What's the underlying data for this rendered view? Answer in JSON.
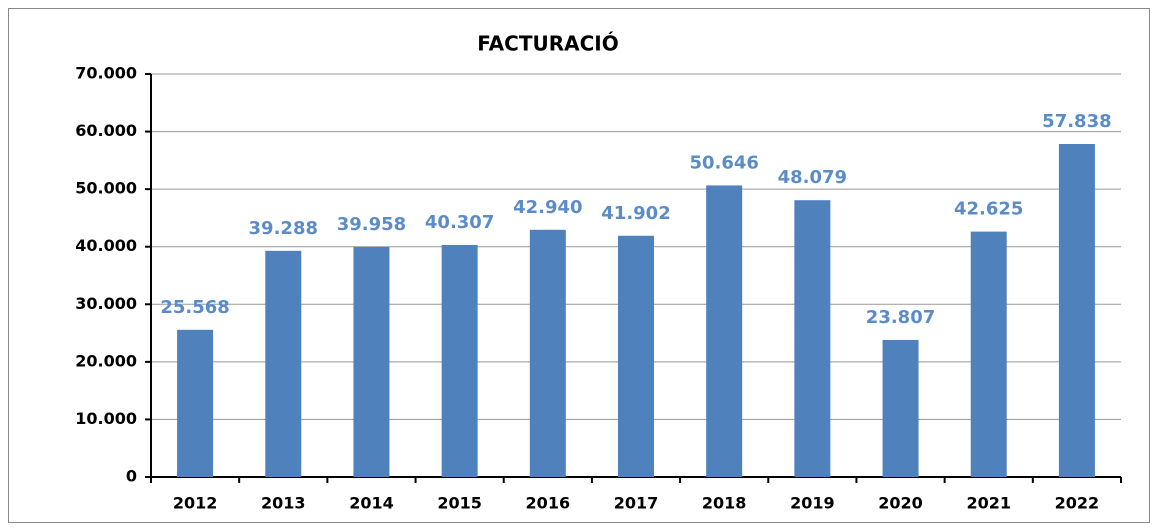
{
  "chart_data": {
    "type": "bar",
    "title": "FACTURACIÓ",
    "categories": [
      "2012",
      "2013",
      "2014",
      "2015",
      "2016",
      "2017",
      "2018",
      "2019",
      "2020",
      "2021",
      "2022"
    ],
    "values": [
      25568,
      39288,
      39958,
      40307,
      42940,
      41902,
      50646,
      48079,
      23807,
      42625,
      57838
    ],
    "value_labels": [
      "25.568",
      "39.288",
      "39.958",
      "40.307",
      "42.940",
      "41.902",
      "50.646",
      "48.079",
      "23.807",
      "42.625",
      "57.838"
    ],
    "color": "#4f81bd",
    "ylim": [
      0,
      70000
    ],
    "yticks": [
      0,
      {
        "value": 10000,
        "label": "10.000"
      },
      {
        "value": 20000,
        "label": "20.000"
      },
      {
        "value": 30000,
        "label": "30.000"
      },
      {
        "value": 40000,
        "label": "40.000"
      },
      {
        "value": 50000,
        "label": "50.000"
      },
      {
        "value": 60000,
        "label": "60.000"
      },
      {
        "value": 70000,
        "label": "70.000"
      }
    ],
    "grid": true
  }
}
